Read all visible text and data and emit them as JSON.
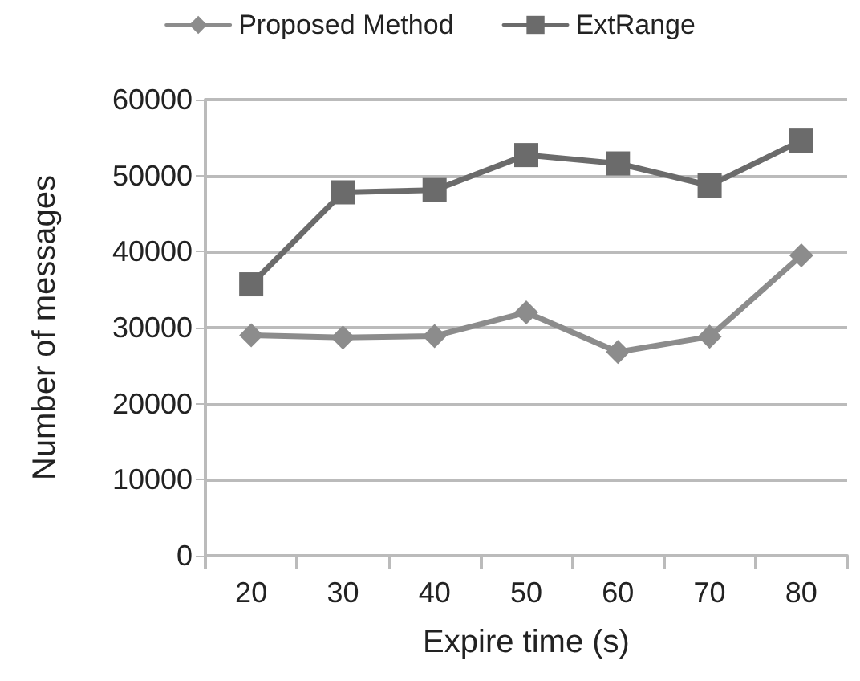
{
  "chart_data": {
    "type": "line",
    "xlabel": "Expire time (s)",
    "ylabel": "Number of messages",
    "categories": [
      "20",
      "30",
      "40",
      "50",
      "60",
      "70",
      "80"
    ],
    "series": [
      {
        "name": "Proposed Method",
        "color": "#8c8c8c",
        "marker": "diamond",
        "values": [
          29000,
          28700,
          28900,
          32000,
          26800,
          28800,
          39500
        ]
      },
      {
        "name": "ExtRange",
        "color": "#6b6b6b",
        "marker": "square",
        "values": [
          35700,
          47800,
          48100,
          52700,
          51600,
          48700,
          54600
        ]
      }
    ],
    "ylim": [
      0,
      60000
    ],
    "yticks": [
      0,
      10000,
      20000,
      30000,
      40000,
      50000,
      60000
    ],
    "grid": "y",
    "legend": "top",
    "line_style": "solid"
  }
}
